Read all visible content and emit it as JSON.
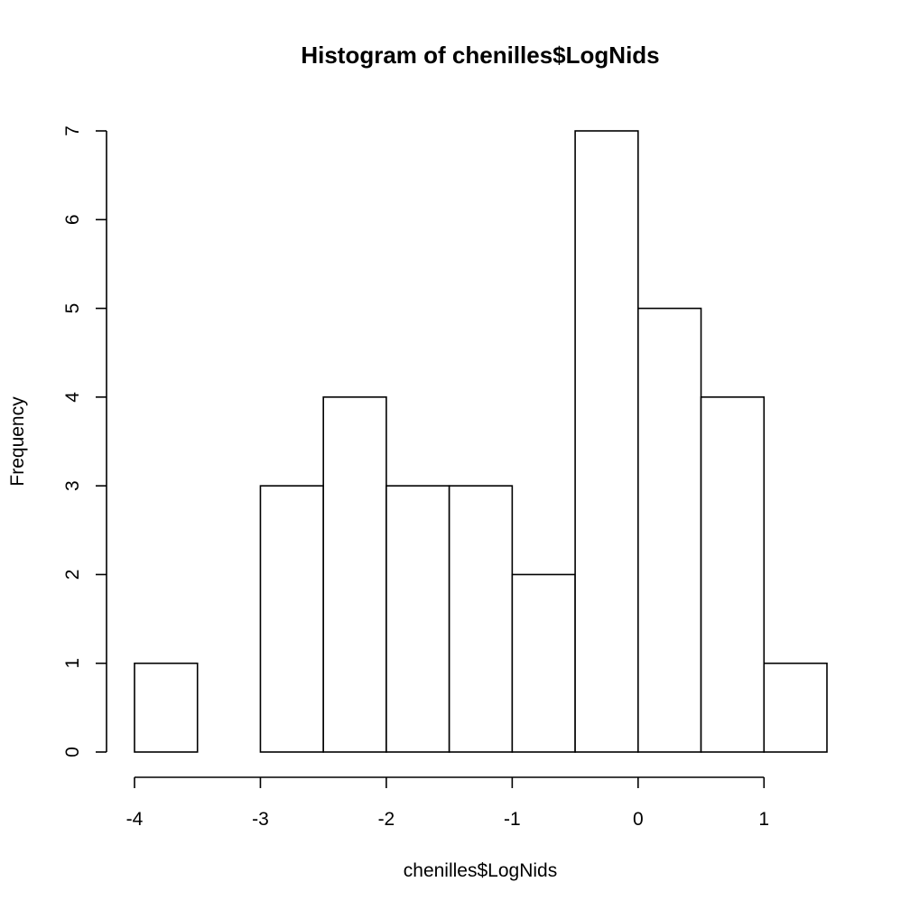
{
  "chart_data": {
    "type": "bar",
    "title": "Histogram of chenilles$LogNids",
    "xlabel": "chenilles$LogNids",
    "ylabel": "Frequency",
    "bins": [
      {
        "start": -4.0,
        "end": -3.5,
        "count": 1
      },
      {
        "start": -3.5,
        "end": -3.0,
        "count": 0
      },
      {
        "start": -3.0,
        "end": -2.5,
        "count": 3
      },
      {
        "start": -2.5,
        "end": -2.0,
        "count": 4
      },
      {
        "start": -2.0,
        "end": -1.5,
        "count": 3
      },
      {
        "start": -1.5,
        "end": -1.0,
        "count": 3
      },
      {
        "start": -1.0,
        "end": -0.5,
        "count": 2
      },
      {
        "start": -0.5,
        "end": 0.0,
        "count": 7
      },
      {
        "start": 0.0,
        "end": 0.5,
        "count": 5
      },
      {
        "start": 0.5,
        "end": 1.0,
        "count": 4
      },
      {
        "start": 1.0,
        "end": 1.5,
        "count": 1
      }
    ],
    "x_ticks": [
      -4,
      -3,
      -2,
      -1,
      0,
      1
    ],
    "y_ticks": [
      0,
      1,
      2,
      3,
      4,
      5,
      6,
      7
    ],
    "xlim": [
      -4,
      1.5
    ],
    "ylim": [
      0,
      7
    ],
    "grid": false
  }
}
